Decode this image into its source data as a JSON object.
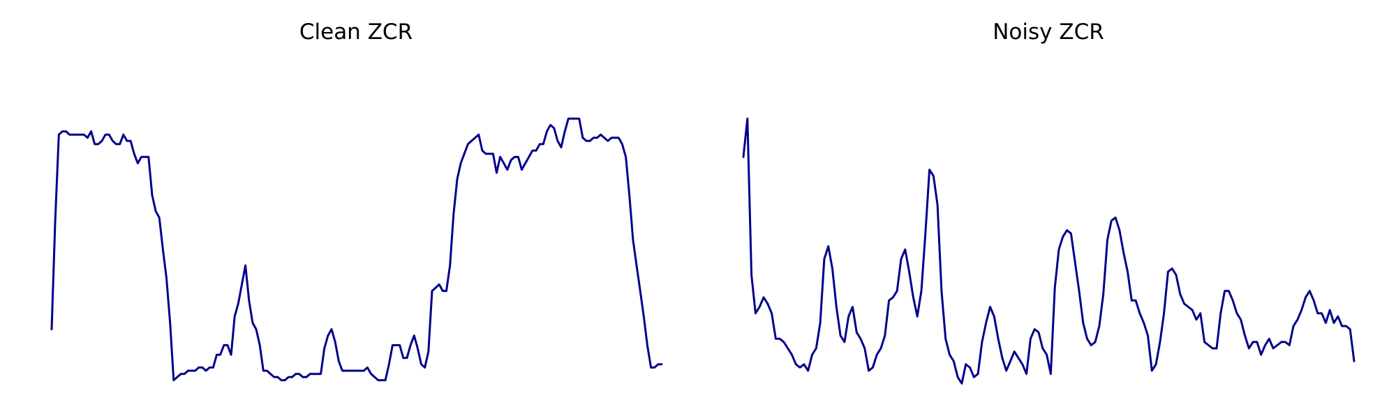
{
  "chart_data": [
    {
      "type": "line",
      "title": "Clean ZCR",
      "xlabel": "",
      "ylabel": "",
      "axes_visible": false,
      "grid": false,
      "color": "#00008b",
      "series": [
        {
          "values": [
            0.18,
            0.52,
            0.79,
            0.8,
            0.8,
            0.79,
            0.79,
            0.79,
            0.79,
            0.79,
            0.78,
            0.8,
            0.76,
            0.76,
            0.77,
            0.79,
            0.79,
            0.77,
            0.76,
            0.76,
            0.79,
            0.77,
            0.77,
            0.73,
            0.7,
            0.72,
            0.72,
            0.72,
            0.6,
            0.55,
            0.53,
            0.43,
            0.34,
            0.2,
            0.02,
            0.03,
            0.04,
            0.04,
            0.05,
            0.05,
            0.05,
            0.06,
            0.06,
            0.05,
            0.06,
            0.06,
            0.1,
            0.1,
            0.13,
            0.13,
            0.1,
            0.22,
            0.26,
            0.32,
            0.38,
            0.27,
            0.2,
            0.18,
            0.13,
            0.05,
            0.05,
            0.04,
            0.03,
            0.03,
            0.02,
            0.02,
            0.03,
            0.03,
            0.04,
            0.04,
            0.03,
            0.03,
            0.04,
            0.04,
            0.04,
            0.04,
            0.12,
            0.16,
            0.18,
            0.14,
            0.08,
            0.05,
            0.05,
            0.05,
            0.05,
            0.05,
            0.05,
            0.05,
            0.06,
            0.04,
            0.03,
            0.02,
            0.02,
            0.02,
            0.07,
            0.13,
            0.13,
            0.13,
            0.09,
            0.09,
            0.13,
            0.16,
            0.12,
            0.07,
            0.06,
            0.11,
            0.3,
            0.31,
            0.32,
            0.3,
            0.3,
            0.38,
            0.54,
            0.65,
            0.7,
            0.73,
            0.76,
            0.77,
            0.78,
            0.79,
            0.74,
            0.73,
            0.73,
            0.73,
            0.67,
            0.72,
            0.7,
            0.68,
            0.71,
            0.72,
            0.72,
            0.68,
            0.7,
            0.72,
            0.74,
            0.74,
            0.76,
            0.76,
            0.8,
            0.82,
            0.81,
            0.77,
            0.75,
            0.8,
            0.84,
            0.84,
            0.84,
            0.84,
            0.78,
            0.77,
            0.77,
            0.78,
            0.78,
            0.79,
            0.78,
            0.77,
            0.78,
            0.78,
            0.78,
            0.76,
            0.72,
            0.6,
            0.46,
            0.38,
            0.3,
            0.22,
            0.13,
            0.06,
            0.06,
            0.07,
            0.07
          ]
        }
      ]
    },
    {
      "type": "line",
      "title": "Noisy ZCR",
      "xlabel": "",
      "ylabel": "",
      "axes_visible": false,
      "grid": false,
      "color": "#00008b",
      "series": [
        {
          "values": [
            0.72,
            0.84,
            0.35,
            0.23,
            0.25,
            0.28,
            0.26,
            0.23,
            0.15,
            0.15,
            0.14,
            0.12,
            0.1,
            0.07,
            0.06,
            0.07,
            0.05,
            0.1,
            0.12,
            0.2,
            0.4,
            0.44,
            0.37,
            0.25,
            0.16,
            0.14,
            0.22,
            0.25,
            0.17,
            0.15,
            0.12,
            0.05,
            0.06,
            0.1,
            0.12,
            0.16,
            0.27,
            0.28,
            0.3,
            0.4,
            0.43,
            0.36,
            0.28,
            0.22,
            0.3,
            0.48,
            0.68,
            0.66,
            0.57,
            0.3,
            0.15,
            0.1,
            0.08,
            0.03,
            0.01,
            0.07,
            0.06,
            0.03,
            0.04,
            0.14,
            0.2,
            0.25,
            0.22,
            0.15,
            0.09,
            0.05,
            0.08,
            0.11,
            0.09,
            0.07,
            0.04,
            0.15,
            0.18,
            0.17,
            0.12,
            0.1,
            0.04,
            0.31,
            0.43,
            0.47,
            0.49,
            0.48,
            0.39,
            0.3,
            0.2,
            0.15,
            0.13,
            0.14,
            0.19,
            0.29,
            0.46,
            0.52,
            0.53,
            0.49,
            0.42,
            0.36,
            0.27,
            0.27,
            0.23,
            0.2,
            0.16,
            0.05,
            0.07,
            0.14,
            0.23,
            0.36,
            0.37,
            0.35,
            0.29,
            0.26,
            0.25,
            0.24,
            0.21,
            0.23,
            0.14,
            0.13,
            0.12,
            0.12,
            0.23,
            0.3,
            0.3,
            0.27,
            0.23,
            0.21,
            0.16,
            0.12,
            0.14,
            0.14,
            0.1,
            0.13,
            0.15,
            0.12,
            0.13,
            0.14,
            0.14,
            0.13,
            0.19,
            0.21,
            0.24,
            0.28,
            0.3,
            0.27,
            0.23,
            0.23,
            0.2,
            0.24,
            0.2,
            0.22,
            0.19,
            0.19,
            0.18,
            0.08
          ]
        }
      ]
    }
  ]
}
